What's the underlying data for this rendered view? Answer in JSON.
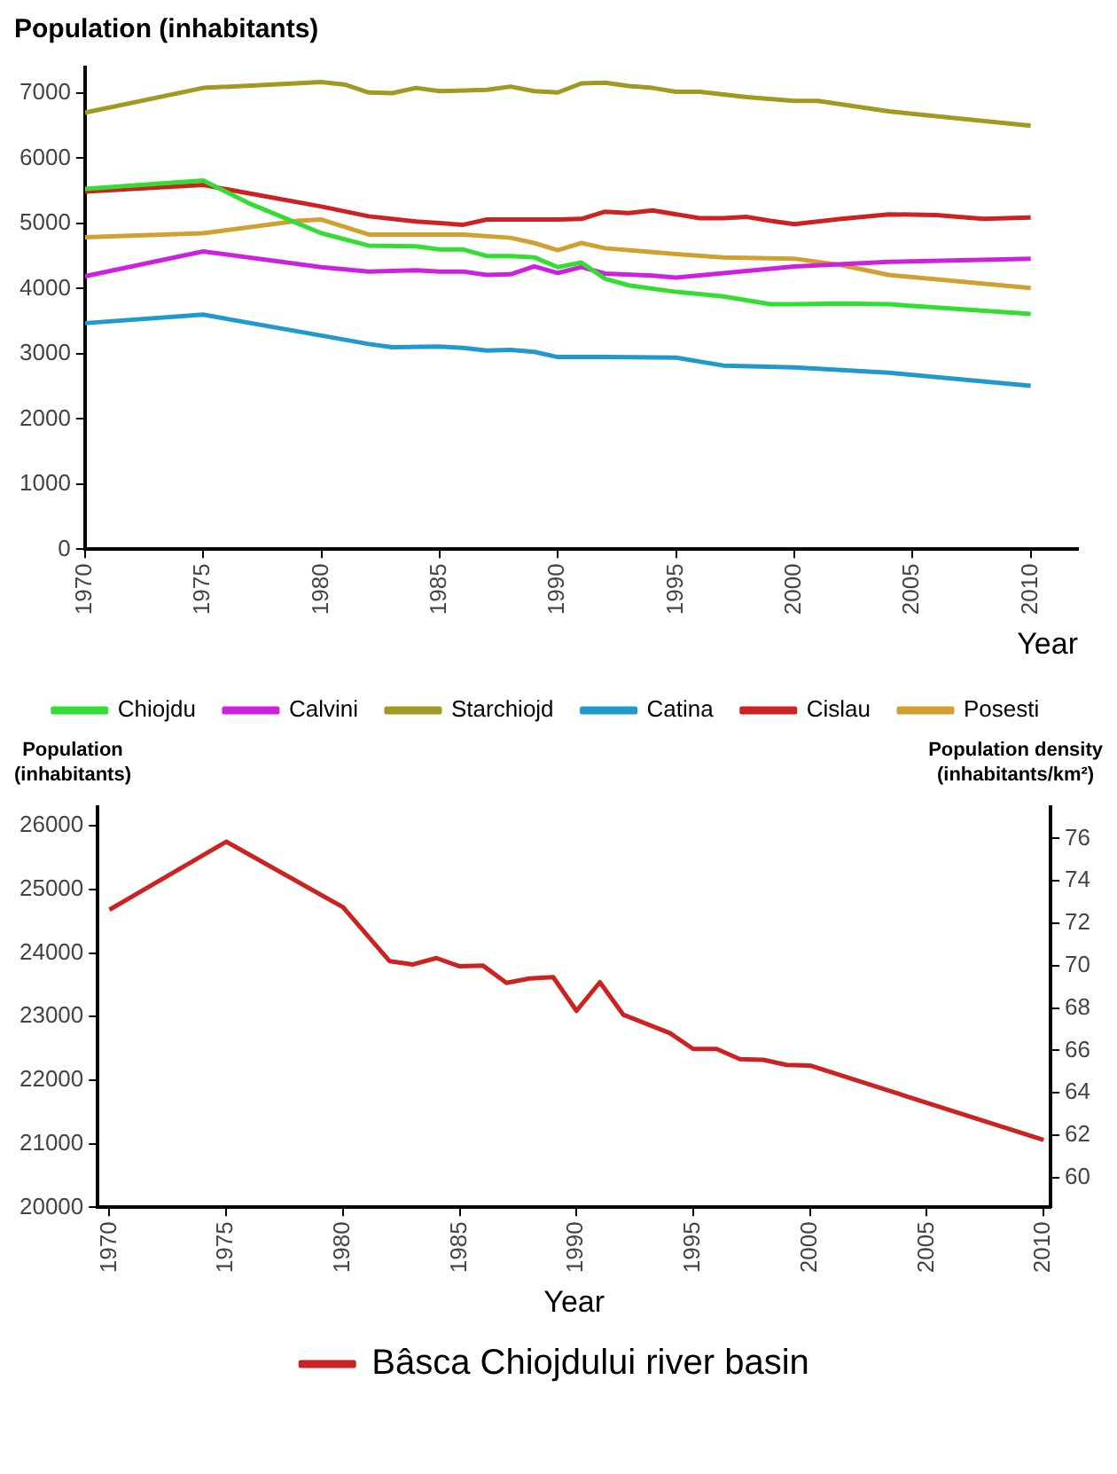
{
  "chart_data": [
    {
      "type": "line",
      "ylabel": "Population (inhabitants)",
      "xlabel": "Year",
      "xlim": [
        1970,
        2012
      ],
      "xticks": [
        1970,
        1975,
        1980,
        1985,
        1990,
        1995,
        2000,
        2005,
        2010
      ],
      "ylim": [
        0,
        7400
      ],
      "yticks": [
        0,
        1000,
        2000,
        3000,
        4000,
        5000,
        6000,
        7000
      ],
      "grid": false,
      "legend": "bottom",
      "marker": "none",
      "line_style": "solid",
      "series": [
        {
          "name": "Chiojdu",
          "color": "#33dd33",
          "x": [
            1970,
            1975,
            1977,
            1980,
            1982,
            1984,
            1985,
            1986,
            1987,
            1988,
            1989,
            1990,
            1991,
            1992,
            1993,
            1995,
            1997,
            1999,
            2000,
            2002,
            2004,
            2010
          ],
          "values": [
            5530,
            5660,
            5300,
            4850,
            4660,
            4650,
            4600,
            4600,
            4500,
            4500,
            4480,
            4330,
            4400,
            4150,
            4050,
            3950,
            3880,
            3760,
            3760,
            3770,
            3760,
            3610
          ]
        },
        {
          "name": "Calvini",
          "color": "#cc22dd",
          "x": [
            1970,
            1975,
            1980,
            1982,
            1984,
            1985,
            1986,
            1987,
            1988,
            1989,
            1990,
            1991,
            1992,
            1994,
            1995,
            1998,
            2000,
            2004,
            2010
          ],
          "values": [
            4190,
            4570,
            4330,
            4260,
            4280,
            4260,
            4260,
            4210,
            4220,
            4340,
            4240,
            4330,
            4230,
            4200,
            4170,
            4270,
            4340,
            4410,
            4460
          ]
        },
        {
          "name": "Starchiojd",
          "color": "#a09a20",
          "x": [
            1970,
            1975,
            1980,
            1981,
            1982,
            1983,
            1984,
            1985,
            1987,
            1988,
            1989,
            1990,
            1991,
            1992,
            1993,
            1994,
            1995,
            1996,
            1998,
            2000,
            2001,
            2004,
            2010
          ],
          "values": [
            6700,
            7080,
            7170,
            7130,
            7010,
            7000,
            7080,
            7030,
            7050,
            7100,
            7030,
            7010,
            7150,
            7160,
            7110,
            7080,
            7020,
            7020,
            6940,
            6880,
            6880,
            6720,
            6500
          ]
        },
        {
          "name": "Catina",
          "color": "#2299cc",
          "x": [
            1970,
            1975,
            1980,
            1982,
            1983,
            1985,
            1986,
            1987,
            1988,
            1989,
            1990,
            1992,
            1995,
            1997,
            2000,
            2004,
            2010
          ],
          "values": [
            3470,
            3600,
            3280,
            3150,
            3100,
            3110,
            3090,
            3050,
            3060,
            3030,
            2950,
            2950,
            2940,
            2820,
            2790,
            2710,
            2510
          ]
        },
        {
          "name": "Cislau",
          "color": "#cc2222",
          "x": [
            1970,
            1975,
            1980,
            1982,
            1984,
            1986,
            1987,
            1990,
            1991,
            1992,
            1993,
            1994,
            1996,
            1997,
            1998,
            1999,
            2000,
            2002,
            2004,
            2006,
            2008,
            2010
          ],
          "values": [
            5490,
            5590,
            5260,
            5110,
            5030,
            4980,
            5060,
            5060,
            5070,
            5180,
            5160,
            5200,
            5080,
            5080,
            5100,
            5040,
            4990,
            5070,
            5140,
            5130,
            5070,
            5090
          ]
        },
        {
          "name": "Posesti",
          "color": "#d0a030",
          "x": [
            1970,
            1975,
            1979,
            1980,
            1982,
            1985,
            1986,
            1988,
            1989,
            1990,
            1991,
            1992,
            1994,
            1995,
            1997,
            2000,
            2002,
            2004,
            2010
          ],
          "values": [
            4790,
            4850,
            5040,
            5060,
            4830,
            4830,
            4830,
            4780,
            4700,
            4590,
            4700,
            4620,
            4560,
            4530,
            4480,
            4460,
            4360,
            4210,
            4010
          ]
        }
      ]
    },
    {
      "type": "line",
      "ylabel": "Population\n(inhabitants)",
      "y2label": "Population density\n(inhabitants/km²)",
      "xlabel": "Year",
      "xlim": [
        1969.5,
        2010.3
      ],
      "xticks": [
        1970,
        1975,
        1980,
        1985,
        1990,
        1995,
        2000,
        2005,
        2010
      ],
      "ylim": [
        20000,
        26300
      ],
      "yticks": [
        20000,
        21000,
        22000,
        23000,
        24000,
        25000,
        26000
      ],
      "y2lim": [
        58.6,
        77.5
      ],
      "y2ticks": [
        60,
        62,
        64,
        66,
        68,
        70,
        72,
        74,
        76
      ],
      "grid": false,
      "legend": "bottom",
      "marker": "none",
      "line_style": "solid",
      "series": [
        {
          "name": "Bâsca Chiojdului river basin",
          "color": "#cc2222",
          "axis": "y",
          "x": [
            1970,
            1975,
            1980,
            1982,
            1983,
            1984,
            1985,
            1986,
            1987,
            1988,
            1989,
            1990,
            1991,
            1992,
            1994,
            1995,
            1996,
            1997,
            1998,
            1999,
            2000,
            2010
          ],
          "values": [
            24680,
            25750,
            24720,
            23870,
            23820,
            23920,
            23790,
            23800,
            23530,
            23600,
            23620,
            23090,
            23540,
            23030,
            22740,
            22490,
            22490,
            22330,
            22320,
            22240,
            22230,
            21060
          ]
        }
      ]
    }
  ]
}
